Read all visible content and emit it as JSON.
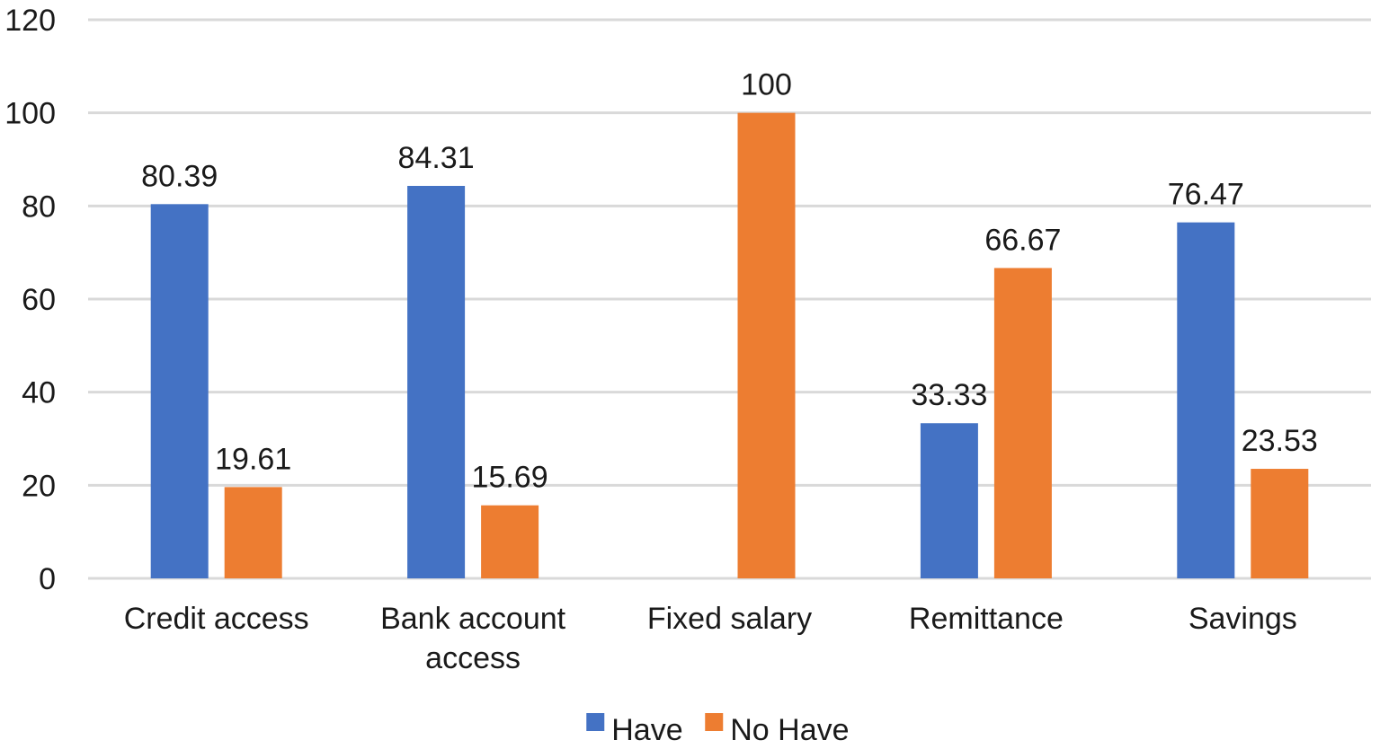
{
  "chart_data": {
    "type": "bar",
    "categories": [
      [
        "Credit access"
      ],
      [
        "Bank account",
        "access"
      ],
      [
        "Fixed salary"
      ],
      [
        "Remittance"
      ],
      [
        "Savings"
      ]
    ],
    "series": [
      {
        "name": "Have",
        "color": "#4472C4",
        "values": [
          80.39,
          84.31,
          null,
          33.33,
          76.47
        ],
        "labels": [
          "80.39",
          "84.31",
          "",
          "33.33",
          "76.47"
        ]
      },
      {
        "name": "No Have",
        "color": "#ED7D31",
        "values": [
          19.61,
          15.69,
          100,
          66.67,
          23.53
        ],
        "labels": [
          "19.61",
          "15.69",
          "100",
          "66.67",
          "23.53"
        ]
      }
    ],
    "ylim": [
      0,
      120
    ],
    "yticks": [
      0,
      20,
      40,
      60,
      80,
      100,
      120
    ],
    "grid": true,
    "legend_position": "bottom"
  }
}
